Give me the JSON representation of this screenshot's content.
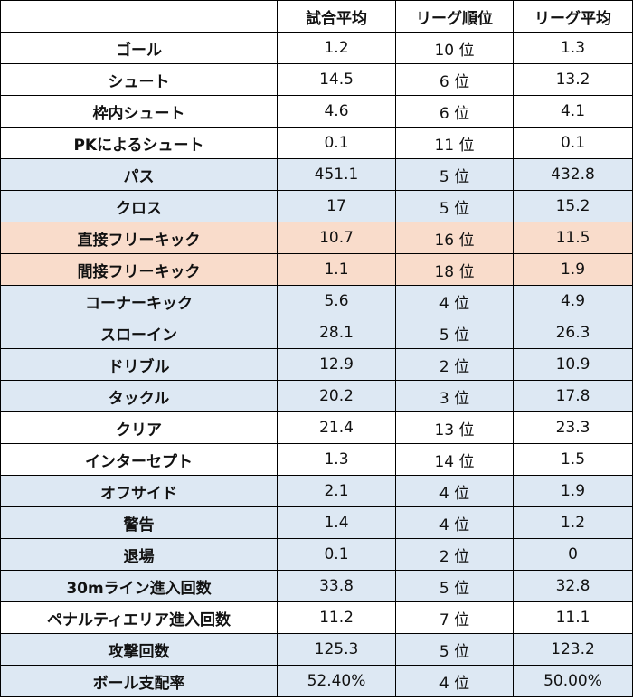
{
  "table": {
    "headers": [
      "",
      "試合平均",
      "リーグ順位",
      "リーグ平均"
    ],
    "rows": [
      {
        "label": "ゴール",
        "avg": "1.2",
        "rank": "10 位",
        "league_avg": "1.3",
        "shade": "w"
      },
      {
        "label": "シュート",
        "avg": "14.5",
        "rank": "6 位",
        "league_avg": "13.2",
        "shade": "w"
      },
      {
        "label": "枠内シュート",
        "avg": "4.6",
        "rank": "6 位",
        "league_avg": "4.1",
        "shade": "w"
      },
      {
        "label": "PKによるシュート",
        "avg": "0.1",
        "rank": "11 位",
        "league_avg": "0.1",
        "shade": "w"
      },
      {
        "label": "パス",
        "avg": "451.1",
        "rank": "5 位",
        "league_avg": "432.8",
        "shade": "b"
      },
      {
        "label": "クロス",
        "avg": "17",
        "rank": "5 位",
        "league_avg": "15.2",
        "shade": "b"
      },
      {
        "label": "直接フリーキック",
        "avg": "10.7",
        "rank": "16 位",
        "league_avg": "11.5",
        "shade": "o"
      },
      {
        "label": "間接フリーキック",
        "avg": "1.1",
        "rank": "18 位",
        "league_avg": "1.9",
        "shade": "o"
      },
      {
        "label": "コーナーキック",
        "avg": "5.6",
        "rank": "4 位",
        "league_avg": "4.9",
        "shade": "b"
      },
      {
        "label": "スローイン",
        "avg": "28.1",
        "rank": "5 位",
        "league_avg": "26.3",
        "shade": "b"
      },
      {
        "label": "ドリブル",
        "avg": "12.9",
        "rank": "2 位",
        "league_avg": "10.9",
        "shade": "b"
      },
      {
        "label": "タックル",
        "avg": "20.2",
        "rank": "3 位",
        "league_avg": "17.8",
        "shade": "b"
      },
      {
        "label": "クリア",
        "avg": "21.4",
        "rank": "13 位",
        "league_avg": "23.3",
        "shade": "w"
      },
      {
        "label": "インターセプト",
        "avg": "1.3",
        "rank": "14 位",
        "league_avg": "1.5",
        "shade": "w"
      },
      {
        "label": "オフサイド",
        "avg": "2.1",
        "rank": "4 位",
        "league_avg": "1.9",
        "shade": "b"
      },
      {
        "label": "警告",
        "avg": "1.4",
        "rank": "4 位",
        "league_avg": "1.2",
        "shade": "b"
      },
      {
        "label": "退場",
        "avg": "0.1",
        "rank": "2 位",
        "league_avg": "0",
        "shade": "b"
      },
      {
        "label": "30mライン進入回数",
        "avg": "33.8",
        "rank": "5 位",
        "league_avg": "32.8",
        "shade": "b"
      },
      {
        "label": "ペナルティエリア進入回数",
        "avg": "11.2",
        "rank": "7 位",
        "league_avg": "11.1",
        "shade": "w"
      },
      {
        "label": "攻撃回数",
        "avg": "125.3",
        "rank": "5 位",
        "league_avg": "123.2",
        "shade": "b"
      },
      {
        "label": "ボール支配率",
        "avg": "52.40%",
        "rank": "4 位",
        "league_avg": "50.00%",
        "shade": "b"
      }
    ]
  },
  "colors": {
    "highlight_blue": "#dde8f3",
    "highlight_orange": "#f9dccb",
    "border": "#000000"
  }
}
